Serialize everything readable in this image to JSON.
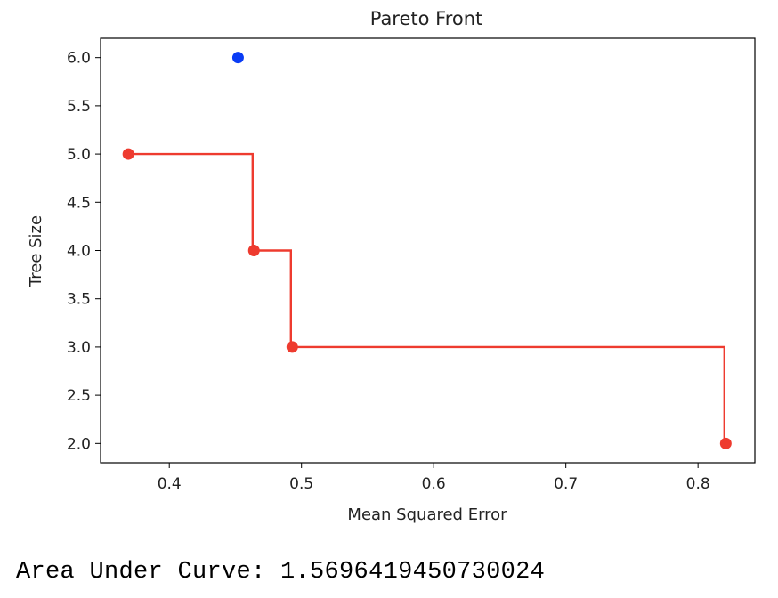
{
  "chart_data": {
    "type": "scatter",
    "title": "Pareto Front",
    "xlabel": "Mean Squared Error",
    "ylabel": "Tree Size",
    "xlim": [
      0.348,
      0.843
    ],
    "ylim": [
      1.8,
      6.2
    ],
    "xticks": [
      0.4,
      0.5,
      0.6,
      0.7,
      0.8
    ],
    "xtick_labels": [
      "0.4",
      "0.5",
      "0.6",
      "0.7",
      "0.8"
    ],
    "yticks": [
      2.0,
      2.5,
      3.0,
      3.5,
      4.0,
      4.5,
      5.0,
      5.5,
      6.0
    ],
    "ytick_labels": [
      "2.0",
      "2.5",
      "3.0",
      "3.5",
      "4.0",
      "4.5",
      "5.0",
      "5.5",
      "6.0"
    ],
    "grid": false,
    "series": [
      {
        "kind": "pareto-points",
        "color": "#ee3b2f",
        "points": [
          {
            "x": 0.369,
            "y": 5.0
          },
          {
            "x": 0.464,
            "y": 4.0
          },
          {
            "x": 0.493,
            "y": 3.0
          },
          {
            "x": 0.821,
            "y": 2.0
          }
        ]
      },
      {
        "kind": "dominated-points",
        "color": "#0a3cf5",
        "points": [
          {
            "x": 0.452,
            "y": 6.0
          }
        ]
      }
    ],
    "step_line": {
      "color": "#ee3b2f",
      "points": [
        {
          "x": 0.369,
          "y": 5.0
        },
        {
          "x": 0.463,
          "y": 5.0
        },
        {
          "x": 0.463,
          "y": 4.0
        },
        {
          "x": 0.492,
          "y": 4.0
        },
        {
          "x": 0.492,
          "y": 3.0
        },
        {
          "x": 0.82,
          "y": 3.0
        },
        {
          "x": 0.82,
          "y": 2.0
        }
      ]
    }
  },
  "output": {
    "text": "Area Under Curve: 1.5696419450730024"
  }
}
